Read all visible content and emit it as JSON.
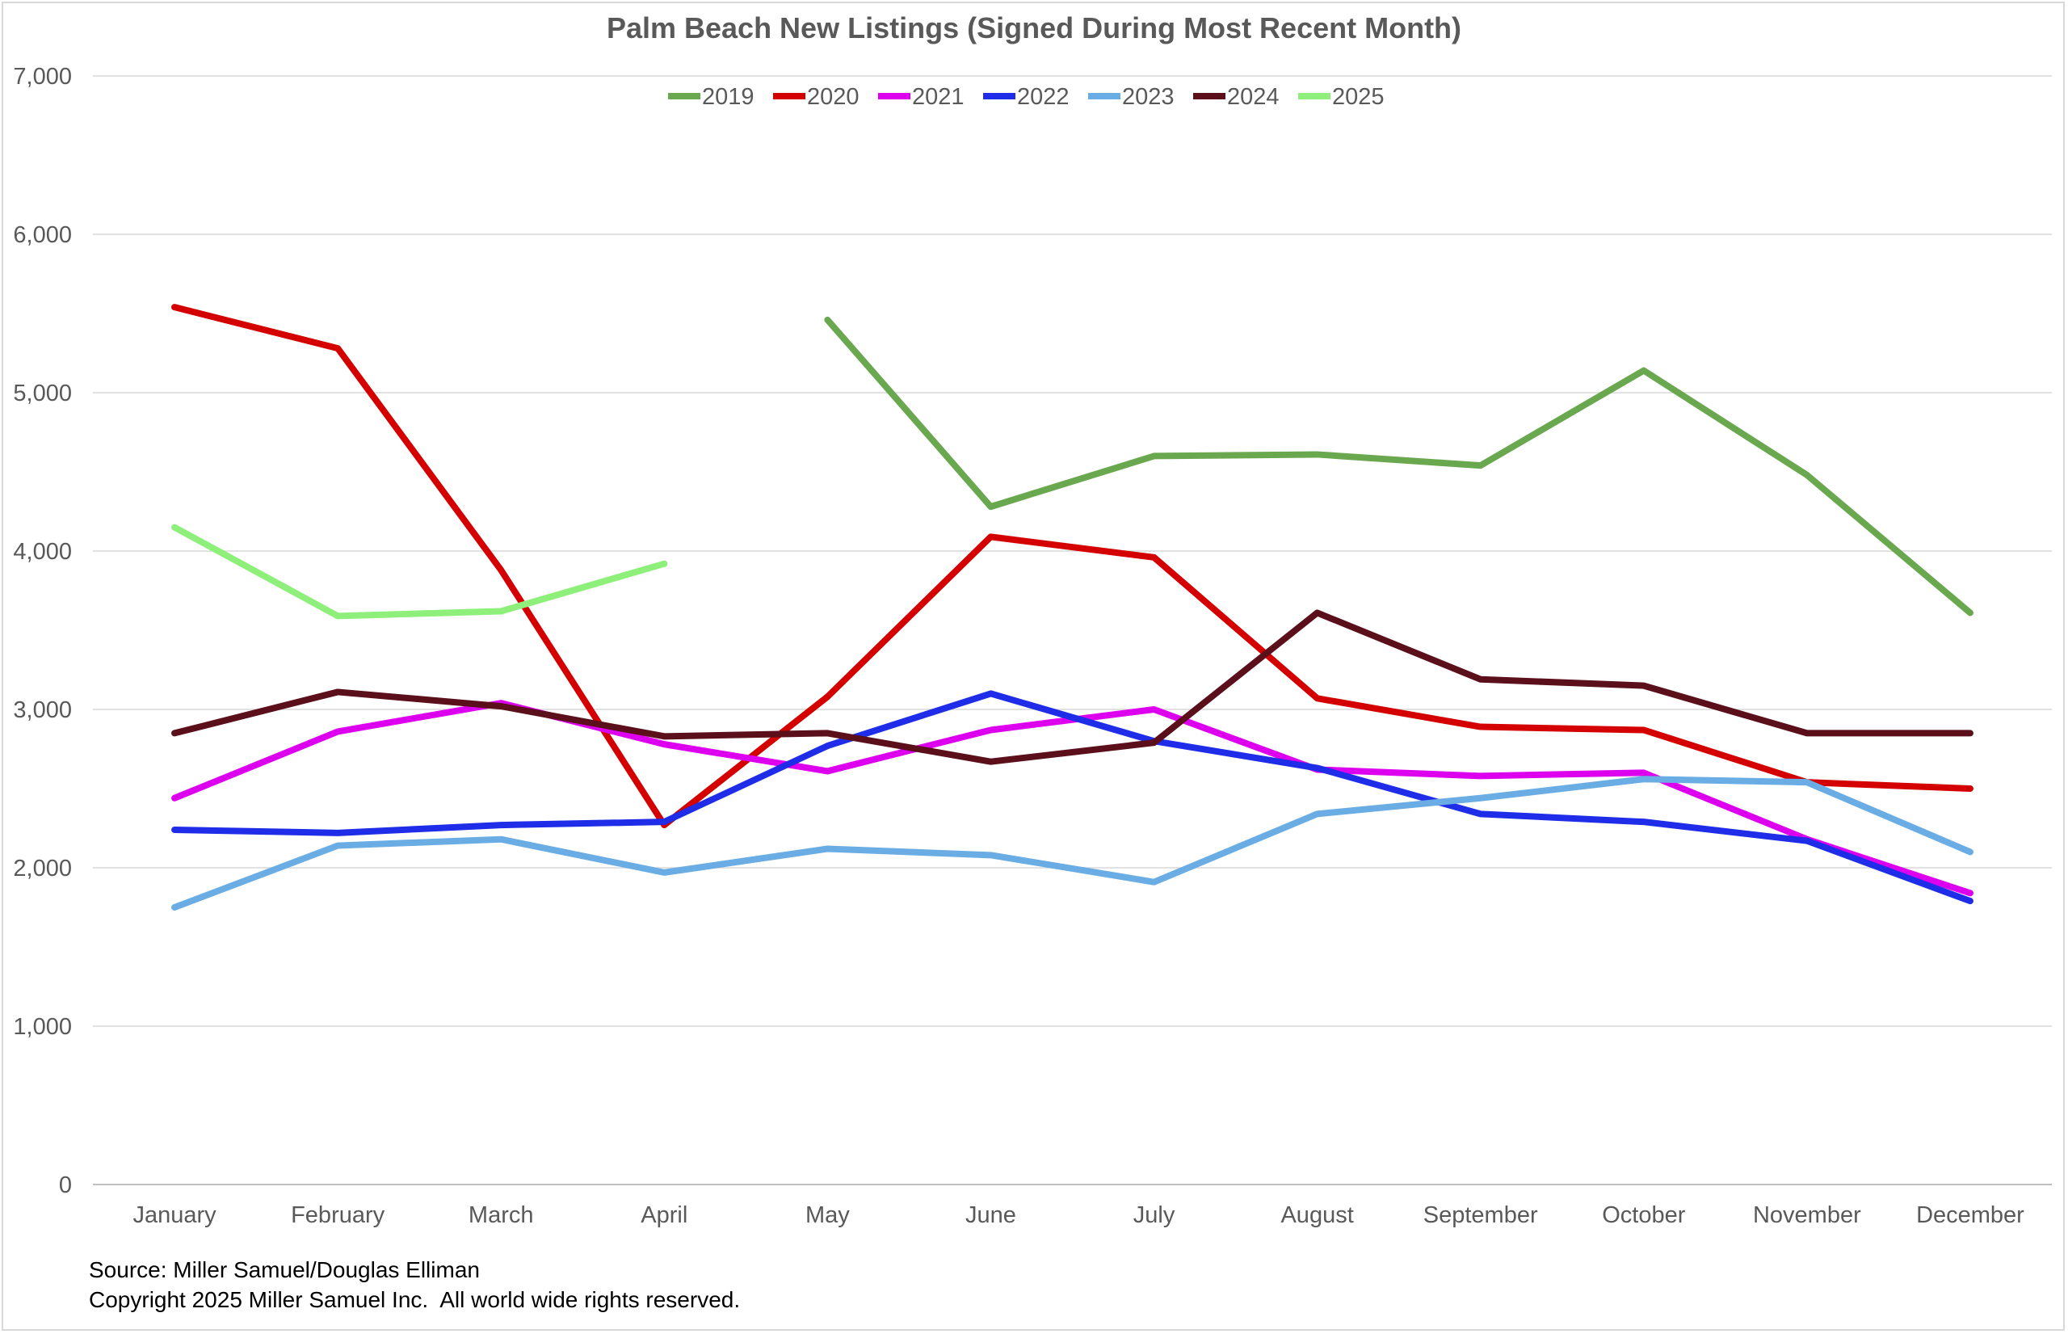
{
  "chart_data": {
    "type": "line",
    "title": "Palm Beach New Listings (Signed During Most Recent Month)",
    "xlabel": "",
    "ylabel": "",
    "categories": [
      "January",
      "February",
      "March",
      "April",
      "May",
      "June",
      "July",
      "August",
      "September",
      "October",
      "November",
      "December"
    ],
    "ylim": [
      0,
      7000
    ],
    "yticks": [
      0,
      1000,
      2000,
      3000,
      4000,
      5000,
      6000,
      7000
    ],
    "ytick_labels": [
      "0",
      "1,000",
      "2,000",
      "3,000",
      "4,000",
      "5,000",
      "6,000",
      "7,000"
    ],
    "grid": true,
    "legend_position": "top-center",
    "series": [
      {
        "name": "2019",
        "color": "#6aa84f",
        "values": [
          null,
          null,
          null,
          null,
          5460,
          4280,
          4600,
          4610,
          4540,
          5140,
          4480,
          3610
        ]
      },
      {
        "name": "2020",
        "color": "#d40000",
        "values": [
          5540,
          5280,
          3880,
          2270,
          3080,
          4090,
          3960,
          3070,
          2890,
          2870,
          2540,
          2500
        ]
      },
      {
        "name": "2021",
        "color": "#dd00ee",
        "values": [
          2440,
          2860,
          3040,
          2780,
          2610,
          2870,
          3000,
          2620,
          2580,
          2600,
          2180,
          1840
        ]
      },
      {
        "name": "2022",
        "color": "#1f2de8",
        "values": [
          2240,
          2220,
          2270,
          2290,
          2770,
          3100,
          2800,
          2630,
          2340,
          2290,
          2170,
          1790
        ]
      },
      {
        "name": "2023",
        "color": "#6aade4",
        "values": [
          1750,
          2140,
          2180,
          1970,
          2120,
          2080,
          1910,
          2340,
          2440,
          2560,
          2540,
          2100
        ]
      },
      {
        "name": "2024",
        "color": "#5a0f1a",
        "values": [
          2850,
          3110,
          3020,
          2830,
          2850,
          2670,
          2790,
          3610,
          3190,
          3150,
          2850,
          2850
        ]
      },
      {
        "name": "2025",
        "color": "#8ef07a",
        "values": [
          4150,
          3590,
          3620,
          3920,
          null,
          null,
          null,
          null,
          null,
          null,
          null,
          null
        ]
      }
    ]
  },
  "footer": {
    "source": "Source: Miller Samuel/Douglas Elliman",
    "copyright": "Copyright 2025 Miller Samuel Inc.  All world wide rights reserved."
  }
}
